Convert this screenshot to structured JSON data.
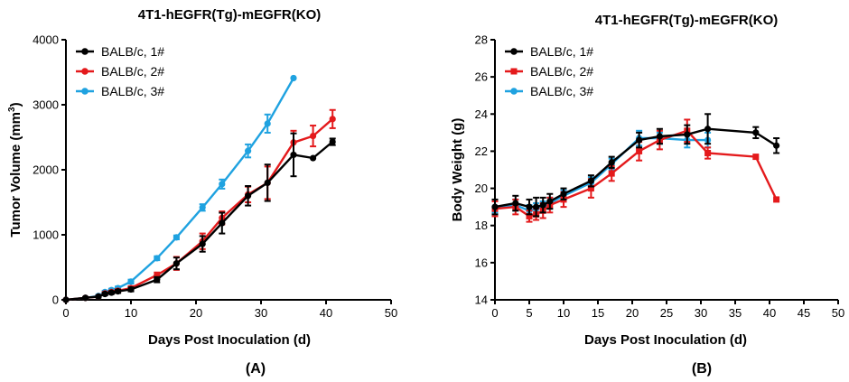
{
  "chart_data": [
    {
      "type": "line",
      "panel_label": "(A)",
      "title": "4T1-hEGFR(Tg)-mEGFR(KO)",
      "xlabel": "Days Post Inoculation (d)",
      "ylabel_text": "Tumor Volume (mm",
      "ylabel_sup": "3",
      "ylabel_close": ")",
      "xlim": [
        0,
        50
      ],
      "ylim": [
        0,
        4000
      ],
      "xticks": [
        0,
        10,
        20,
        30,
        40,
        50
      ],
      "yticks": [
        0,
        1000,
        2000,
        3000,
        4000
      ],
      "xtick_labels": [
        "0",
        "10",
        "20",
        "30",
        "40",
        "50"
      ],
      "ytick_labels": [
        "0",
        "1000",
        "2000",
        "3000",
        "4000"
      ],
      "legend_position": "top-left",
      "series": [
        {
          "name": "BALB/c,  1#",
          "color": "#000000",
          "marker": "circle",
          "x": [
            0,
            3,
            5,
            6,
            7,
            8,
            10,
            14,
            17,
            21,
            24,
            28,
            31,
            35,
            38,
            41
          ],
          "y": [
            0,
            30,
            50,
            90,
            110,
            130,
            160,
            310,
            560,
            860,
            1180,
            1600,
            1800,
            2230,
            2180,
            2430
          ],
          "err": [
            0,
            10,
            15,
            20,
            20,
            25,
            30,
            40,
            90,
            120,
            160,
            150,
            280,
            330,
            0,
            50
          ]
        },
        {
          "name": "BALB/c,  2#",
          "color": "#e41a1c",
          "marker": "circle",
          "x": [
            0,
            3,
            5,
            6,
            7,
            8,
            10,
            14,
            17,
            21,
            24,
            28,
            31,
            35,
            38,
            41
          ],
          "y": [
            0,
            30,
            50,
            100,
            120,
            140,
            180,
            380,
            560,
            900,
            1260,
            1620,
            1800,
            2420,
            2520,
            2780
          ],
          "err": [
            0,
            10,
            15,
            20,
            20,
            25,
            30,
            40,
            100,
            120,
            100,
            120,
            250,
            180,
            160,
            140
          ]
        },
        {
          "name": "BALB/c,  3#",
          "color": "#1fa2e0",
          "marker": "circle",
          "x": [
            0,
            3,
            5,
            6,
            7,
            8,
            10,
            14,
            17,
            21,
            24,
            28,
            31,
            35
          ],
          "y": [
            0,
            30,
            60,
            120,
            150,
            180,
            280,
            640,
            960,
            1420,
            1780,
            2290,
            2710,
            3410
          ],
          "err": [
            0,
            10,
            15,
            20,
            20,
            25,
            30,
            30,
            30,
            50,
            70,
            100,
            140,
            0
          ]
        }
      ]
    },
    {
      "type": "line",
      "panel_label": "(B)",
      "title": "4T1-hEGFR(Tg)-mEGFR(KO)",
      "xlabel": "Days Post Inoculation (d)",
      "ylabel_text": "Body Weight (g)",
      "xlim": [
        0,
        50
      ],
      "ylim": [
        14,
        28
      ],
      "xticks": [
        0,
        5,
        10,
        15,
        20,
        25,
        30,
        35,
        40,
        45,
        50
      ],
      "yticks": [
        14,
        16,
        18,
        20,
        22,
        24,
        26,
        28
      ],
      "xtick_labels": [
        "0",
        "5",
        "10",
        "15",
        "20",
        "25",
        "30",
        "35",
        "40",
        "45",
        "50"
      ],
      "ytick_labels": [
        "14",
        "16",
        "18",
        "20",
        "22",
        "24",
        "26",
        "28"
      ],
      "legend_position": "top-left",
      "series": [
        {
          "name": "BALB/c,  1#",
          "color": "#000000",
          "marker": "circle",
          "x": [
            0,
            3,
            5,
            6,
            7,
            8,
            10,
            14,
            17,
            21,
            24,
            28,
            31,
            38,
            41
          ],
          "y": [
            19.0,
            19.2,
            19.0,
            19.0,
            19.1,
            19.3,
            19.7,
            20.4,
            21.4,
            22.6,
            22.8,
            22.9,
            23.2,
            23.0,
            22.3
          ],
          "err": [
            0.4,
            0.4,
            0.4,
            0.5,
            0.4,
            0.4,
            0.3,
            0.3,
            0.3,
            0.4,
            0.4,
            0.5,
            0.8,
            0.3,
            0.4
          ]
        },
        {
          "name": "BALB/c,  2#",
          "color": "#e41a1c",
          "marker": "square",
          "x": [
            0,
            3,
            5,
            6,
            7,
            8,
            10,
            14,
            17,
            21,
            24,
            28,
            31,
            38,
            41
          ],
          "y": [
            18.9,
            19.0,
            18.5,
            18.6,
            18.8,
            19.1,
            19.4,
            20.0,
            20.8,
            22.0,
            22.6,
            23.1,
            21.9,
            21.7,
            19.4
          ],
          "err": [
            0.4,
            0.4,
            0.3,
            0.3,
            0.4,
            0.4,
            0.4,
            0.5,
            0.4,
            0.5,
            0.5,
            0.6,
            0.3,
            0,
            0
          ]
        },
        {
          "name": "BALB/c,  3#",
          "color": "#1fa2e0",
          "marker": "circle",
          "x": [
            0,
            3,
            5,
            6,
            7,
            8,
            10,
            14,
            17,
            21,
            24,
            28,
            31
          ],
          "y": [
            19.0,
            19.1,
            18.8,
            18.9,
            19.0,
            19.2,
            19.6,
            20.3,
            21.3,
            22.7,
            22.7,
            22.6,
            22.6
          ],
          "err": [
            0.3,
            0.3,
            0.3,
            0.3,
            0.3,
            0.3,
            0.3,
            0.3,
            0.3,
            0.4,
            0.3,
            0.4,
            0.4
          ]
        }
      ]
    }
  ]
}
